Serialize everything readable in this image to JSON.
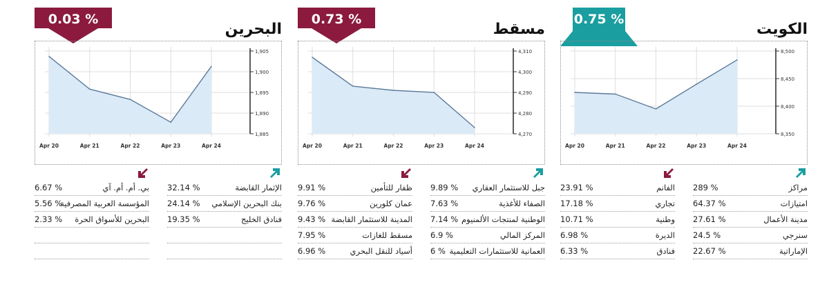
{
  "colors": {
    "badge_up": "#1a9ea0",
    "badge_down": "#8b1a3e",
    "area_fill": "#dbeaf7",
    "line": "#5b7a9a",
    "grid": "#dddddd",
    "axis": "#333333"
  },
  "markets": [
    {
      "name": "الكويت",
      "change": "0.75 %",
      "direction": "up",
      "gainers_icon": "arrow-up-right-icon",
      "losers_icon": "arrow-down-left-icon",
      "chart_data": {
        "type": "area",
        "x": [
          "Apr 20",
          "Apr 21",
          "Apr 22",
          "Apr 23",
          "Apr 24"
        ],
        "values": [
          8425,
          8422,
          8395,
          8440,
          8484
        ],
        "ylim": [
          8350,
          8500
        ],
        "yticks": [
          "8,350",
          "8,400",
          "8,450",
          "8,500"
        ],
        "grid": true
      },
      "gainers": [
        {
          "name": "مراكز",
          "value": "289 %"
        },
        {
          "name": "امتيازات",
          "value": "64.37 %"
        },
        {
          "name": "مدينة الأعمال",
          "value": "27.61 %"
        },
        {
          "name": "سنرجي",
          "value": "24.5 %"
        },
        {
          "name": "الإماراتية",
          "value": "22.67 %"
        }
      ],
      "losers": [
        {
          "name": "الفانم",
          "value": "23.91 %"
        },
        {
          "name": "تجاري",
          "value": "17.18 %"
        },
        {
          "name": "وطنية",
          "value": "10.71 %"
        },
        {
          "name": "الديرة",
          "value": "6.98 %"
        },
        {
          "name": "فنادق",
          "value": "6.33 %"
        }
      ]
    },
    {
      "name": "مسقط",
      "change": "0.73 %",
      "direction": "down",
      "gainers_icon": "arrow-up-right-icon",
      "losers_icon": "arrow-down-left-icon",
      "chart_data": {
        "type": "area",
        "x": [
          "Apr 20",
          "Apr 21",
          "Apr 22",
          "Apr 23",
          "Apr 24"
        ],
        "values": [
          4307,
          4293,
          4291,
          4290,
          4273
        ],
        "ylim": [
          4270,
          4310
        ],
        "yticks": [
          "4,270",
          "4,280",
          "4,290",
          "4,300",
          "4,310"
        ],
        "grid": true
      },
      "gainers": [
        {
          "name": "جبل للاستثمار العقاري",
          "value": "9.89 %"
        },
        {
          "name": "الصفاء للأغذية",
          "value": "7.63 %"
        },
        {
          "name": "الوطنية لمنتجات الألمنيوم",
          "value": "7.14 %"
        },
        {
          "name": "المركز المالي",
          "value": "6.9 %"
        },
        {
          "name": "العمانية للاستثمارات التعليمية",
          "value": "6 %"
        }
      ],
      "losers": [
        {
          "name": "ظفار للتأمين",
          "value": "9.91 %"
        },
        {
          "name": "عمان كلورين",
          "value": "9.76 %"
        },
        {
          "name": "المدينة للاستثمار القابضة",
          "value": "9.43 %"
        },
        {
          "name": "مسقط للغازات",
          "value": "7.95 %"
        },
        {
          "name": "أسياد للنقل البحري",
          "value": "6.96 %"
        }
      ]
    },
    {
      "name": "البحرين",
      "change": "0.03 %",
      "direction": "down",
      "gainers_icon": "arrow-up-right-icon",
      "losers_icon": "arrow-down-left-icon",
      "chart_data": {
        "type": "area",
        "x": [
          "Apr 20",
          "Apr 21",
          "Apr 22",
          "Apr 23",
          "Apr 24"
        ],
        "values": [
          1903.7,
          1895.8,
          1893.3,
          1887.8,
          1901.3
        ],
        "ylim": [
          1885,
          1905
        ],
        "yticks": [
          "1,885",
          "1,890",
          "1,895",
          "1,900",
          "1,905"
        ],
        "grid": true
      },
      "gainers": [
        {
          "name": "الإثمار القابضة",
          "value": "32.14 %"
        },
        {
          "name": "بنك البحرين الإسلامي",
          "value": "24.14 %"
        },
        {
          "name": "فنادق الخليج",
          "value": "19.35 %"
        },
        {
          "name": "",
          "value": ""
        },
        {
          "name": "",
          "value": ""
        }
      ],
      "losers": [
        {
          "name": "بي. أم. أم. آي",
          "value": "6.67 %"
        },
        {
          "name": "المؤسسة العربية المصرفية",
          "value": "5.56 %"
        },
        {
          "name": "البحرين للأسواق الحرة",
          "value": "2.33 %"
        },
        {
          "name": "",
          "value": ""
        },
        {
          "name": "",
          "value": ""
        }
      ]
    }
  ]
}
